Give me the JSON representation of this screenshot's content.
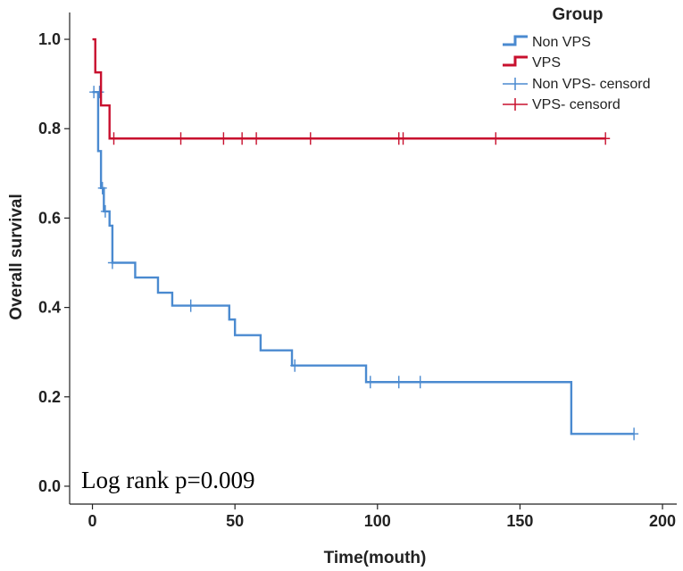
{
  "chart_data": {
    "type": "line",
    "subtype": "kaplan-meier",
    "title": "",
    "xlabel": "Time(mouth)",
    "ylabel": "Overall survival",
    "xlim": [
      -8,
      205
    ],
    "ylim": [
      -0.04,
      1.06
    ],
    "x_ticks": [
      0,
      50,
      100,
      150,
      200
    ],
    "x_tick_labels": [
      "0",
      "50",
      "100",
      "150",
      "200"
    ],
    "y_ticks": [
      0.0,
      0.2,
      0.4,
      0.6,
      0.8,
      1.0
    ],
    "y_tick_labels": [
      "0.0",
      "0.2",
      "0.4",
      "0.6",
      "0.8",
      "1.0"
    ],
    "legend": {
      "title": "Group",
      "position": "top-right",
      "entries": [
        "Non VPS",
        "VPS",
        "Non VPS- censord",
        "VPS- censord"
      ]
    },
    "annotation": "Log rank p=0.009",
    "series": [
      {
        "name": "Non VPS",
        "color": "#4a8ad0",
        "steps": [
          [
            0,
            0.882
          ],
          [
            2,
            0.75
          ],
          [
            3,
            0.667
          ],
          [
            4,
            0.615
          ],
          [
            6,
            0.583
          ],
          [
            7,
            0.5
          ],
          [
            15,
            0.467
          ],
          [
            23,
            0.433
          ],
          [
            28,
            0.404
          ],
          [
            48,
            0.373
          ],
          [
            50,
            0.338
          ],
          [
            59,
            0.304
          ],
          [
            70,
            0.27
          ],
          [
            96,
            0.233
          ],
          [
            168,
            0.117
          ]
        ],
        "end_x": 190,
        "censored": [
          [
            0.5,
            0.882
          ],
          [
            2.5,
            0.882
          ],
          [
            3.5,
            0.667
          ],
          [
            4.5,
            0.615
          ],
          [
            7,
            0.5
          ],
          [
            34.5,
            0.404
          ],
          [
            71,
            0.27
          ],
          [
            97.5,
            0.233
          ],
          [
            107.5,
            0.233
          ],
          [
            115,
            0.233
          ],
          [
            190,
            0.117
          ]
        ]
      },
      {
        "name": "VPS",
        "color": "#c8102e",
        "steps": [
          [
            0,
            1.0
          ],
          [
            1,
            0.926
          ],
          [
            3,
            0.852
          ],
          [
            6,
            0.778
          ]
        ],
        "end_x": 180,
        "censored": [
          [
            7.5,
            0.778
          ],
          [
            31,
            0.778
          ],
          [
            46,
            0.778
          ],
          [
            52.5,
            0.778
          ],
          [
            57.5,
            0.778
          ],
          [
            76.5,
            0.778
          ],
          [
            107.5,
            0.778
          ],
          [
            109,
            0.778
          ],
          [
            141.5,
            0.778
          ],
          [
            180,
            0.778
          ]
        ]
      }
    ]
  }
}
